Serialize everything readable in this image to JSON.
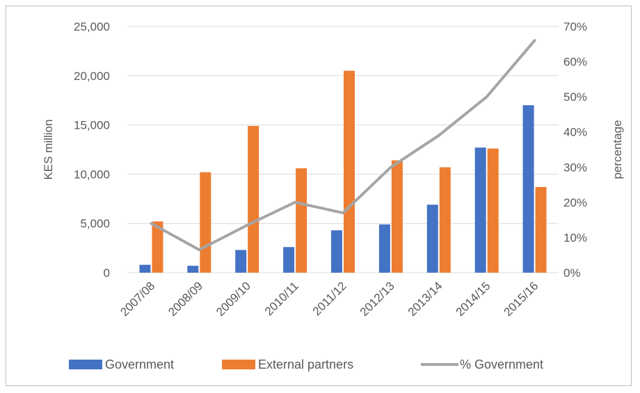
{
  "chart_data": {
    "type": "bar",
    "title": "",
    "categories": [
      "2007/08",
      "2008/09",
      "2009/10",
      "2010/11",
      "2011/12",
      "2012/13",
      "2013/14",
      "2014/15",
      "2015/16"
    ],
    "series": [
      {
        "name": "Government",
        "type": "bar",
        "axis": "left",
        "color": "#4472C4",
        "values": [
          800,
          700,
          2300,
          2600,
          4300,
          4900,
          6900,
          12700,
          17000
        ]
      },
      {
        "name": "External partners",
        "type": "bar",
        "axis": "left",
        "color": "#ED7D31",
        "values": [
          5200,
          10200,
          14900,
          10600,
          20500,
          11400,
          10700,
          12600,
          8700
        ]
      },
      {
        "name": "% Government",
        "type": "line",
        "axis": "right",
        "color": "#A5A5A5",
        "values": [
          14,
          6.5,
          13.5,
          20,
          17,
          30,
          39,
          50,
          66
        ]
      }
    ],
    "ylabel": "KES million",
    "ylim": [
      0,
      25000
    ],
    "yticks": [
      "0",
      "5,000",
      "10,000",
      "15,000",
      "20,000",
      "25,000"
    ],
    "y2label": "percentage",
    "y2lim": [
      0,
      70
    ],
    "y2ticks": [
      "0%",
      "10%",
      "20%",
      "30%",
      "40%",
      "50%",
      "60%",
      "70%"
    ],
    "grid": true,
    "legend_position": "bottom"
  }
}
